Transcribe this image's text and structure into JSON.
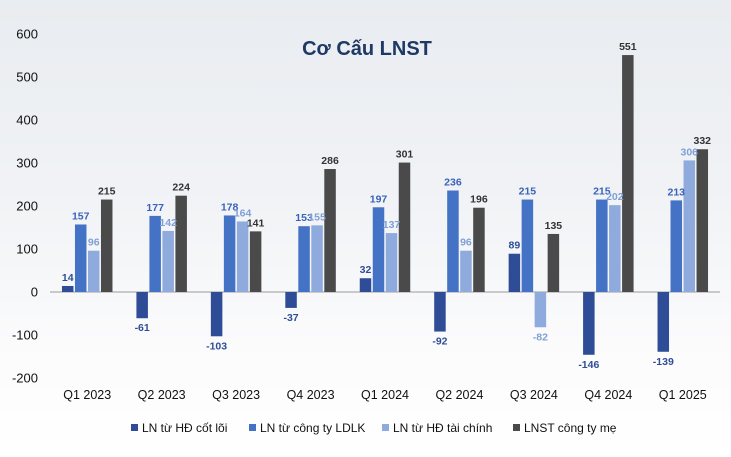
{
  "chart_data": {
    "type": "bar",
    "title": "Cơ Cấu LNST",
    "xlabel": "",
    "ylabel": "",
    "ylim": [
      -200,
      600
    ],
    "yticks": [
      -200,
      -100,
      0,
      100,
      200,
      300,
      400,
      500,
      600
    ],
    "grid": false,
    "legend_position": "bottom",
    "categories": [
      "Q1 2023",
      "Q2 2023",
      "Q3 2023",
      "Q4 2023",
      "Q1 2024",
      "Q2 2024",
      "Q3 2024",
      "Q4 2024",
      "Q1 2025"
    ],
    "series": [
      {
        "name": "LN từ HĐ cốt lõi",
        "color": "#2f4d96",
        "label_color": "#2f4d96",
        "values": [
          14,
          -61,
          -103,
          -37,
          32,
          -92,
          89,
          -146,
          -139
        ]
      },
      {
        "name": "LN từ công ty LDLK",
        "color": "#4472c4",
        "label_color": "#3a63b8",
        "values": [
          157,
          177,
          178,
          153,
          197,
          236,
          215,
          215,
          213
        ]
      },
      {
        "name": "LN từ HĐ tài chính",
        "color": "#8faadc",
        "label_color": "#7f9fd6",
        "values": [
          96,
          142,
          164,
          155,
          137,
          96,
          -82,
          202,
          306
        ]
      },
      {
        "name": "LNST công ty mẹ",
        "color": "#4a4a4a",
        "label_color": "#333333",
        "values": [
          215,
          224,
          141,
          286,
          301,
          196,
          135,
          551,
          332
        ]
      }
    ]
  }
}
